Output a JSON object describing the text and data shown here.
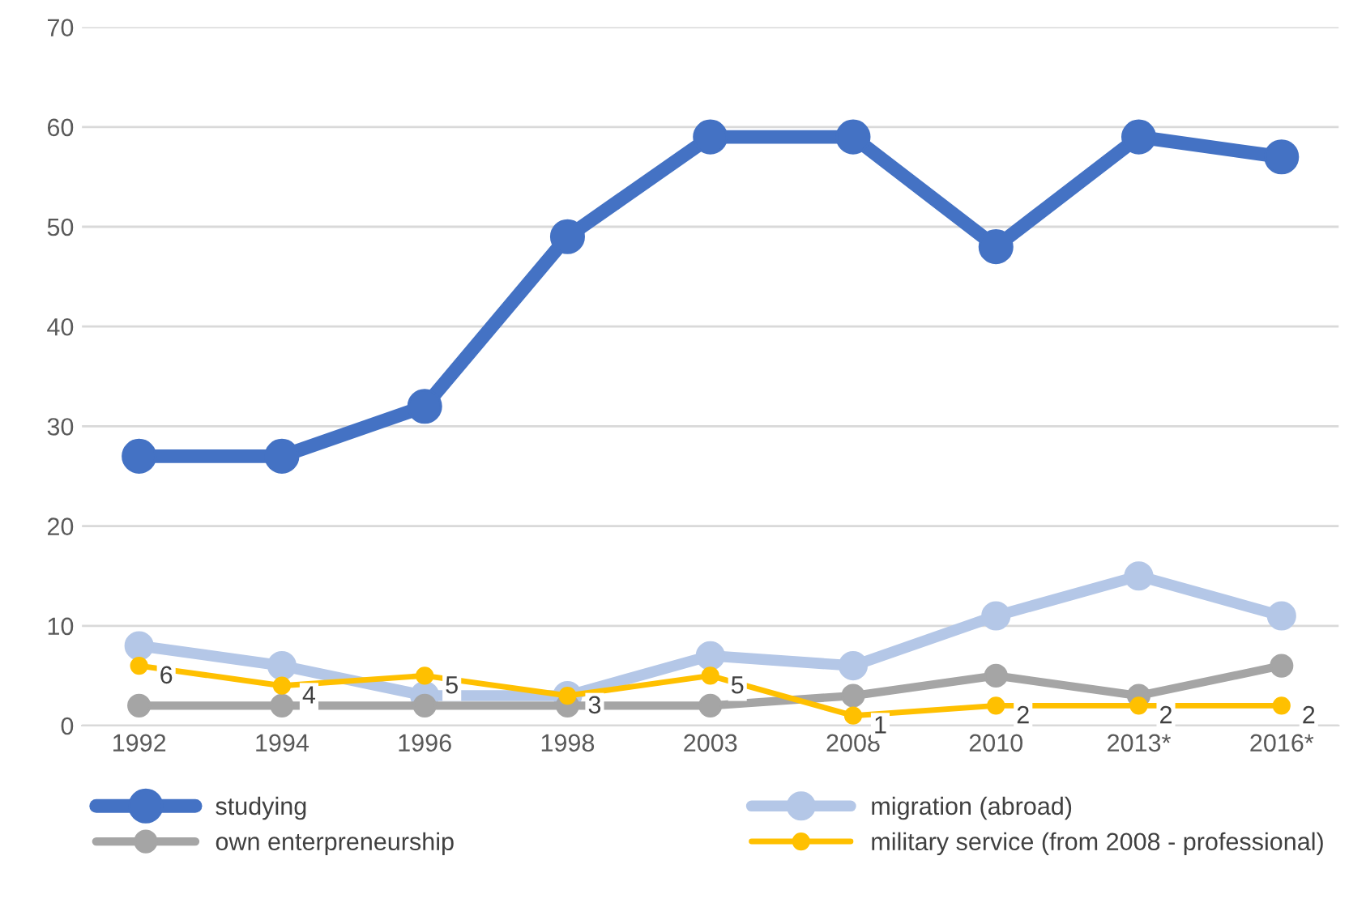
{
  "chart_data": {
    "type": "line",
    "categories": [
      "1992",
      "1994",
      "1996",
      "1998",
      "2003",
      "2008",
      "2010",
      "2013*",
      "2016*"
    ],
    "series": [
      {
        "name": "studying",
        "color": "#4472c4",
        "values": [
          27,
          27,
          32,
          49,
          59,
          59,
          48,
          59,
          57
        ]
      },
      {
        "name": "migration (abroad)",
        "color": "#b4c7e7",
        "values": [
          8,
          6,
          3,
          3,
          7,
          6,
          11,
          15,
          11
        ]
      },
      {
        "name": "own enterpreneurship",
        "color": "#a5a5a5",
        "values": [
          2,
          2,
          2,
          2,
          2,
          3,
          5,
          3,
          6
        ]
      },
      {
        "name": "military service (from 2008 - professional)",
        "color": "#ffc000",
        "values": [
          6,
          4,
          5,
          3,
          5,
          1,
          2,
          2,
          2
        ],
        "value_labels": [
          "6",
          "4",
          "5",
          "3",
          "5",
          "1",
          "2",
          "2",
          "2"
        ]
      }
    ],
    "ylim": [
      0,
      70
    ],
    "yticks": [
      0,
      10,
      20,
      30,
      40,
      50,
      60,
      70
    ],
    "grid": "y",
    "legend": "bottom",
    "marker": "circle",
    "line_style": "solid"
  }
}
